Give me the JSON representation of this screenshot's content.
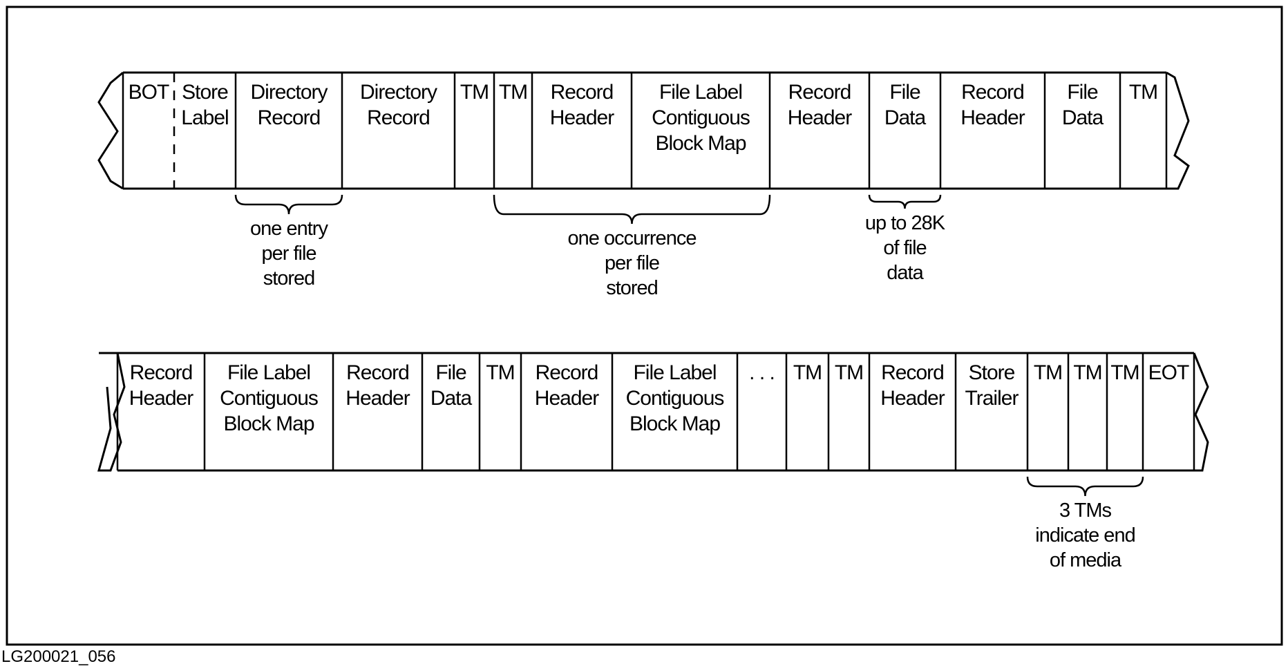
{
  "figure_id": "LG200021_056",
  "row1": {
    "cells": [
      [
        "BOT"
      ],
      [
        "Store",
        "Label"
      ],
      [
        "Directory",
        "Record"
      ],
      [
        "Directory",
        "Record"
      ],
      [
        "TM"
      ],
      [
        "TM"
      ],
      [
        "Record",
        "Header"
      ],
      [
        "File Label",
        "Contiguous",
        "Block Map"
      ],
      [
        "Record",
        "Header"
      ],
      [
        "File",
        "Data"
      ],
      [
        "Record",
        "Header"
      ],
      [
        "File",
        "Data"
      ],
      [
        "TM"
      ]
    ],
    "notes": [
      {
        "lines": [
          "one entry",
          "per file",
          "stored"
        ]
      },
      {
        "lines": [
          "one occurrence",
          "per file",
          "stored"
        ]
      },
      {
        "lines": [
          "up to 28K",
          "of file",
          "data"
        ]
      }
    ]
  },
  "row2": {
    "cells": [
      [
        "Record",
        "Header"
      ],
      [
        "File Label",
        "Contiguous",
        "Block Map"
      ],
      [
        "Record",
        "Header"
      ],
      [
        "File",
        "Data"
      ],
      [
        "TM"
      ],
      [
        "Record",
        "Header"
      ],
      [
        "File Label",
        "Contiguous",
        "Block Map"
      ],
      [
        ". . ."
      ],
      [
        "TM"
      ],
      [
        "TM"
      ],
      [
        "Record",
        "Header"
      ],
      [
        "Store",
        "Trailer"
      ],
      [
        "TM"
      ],
      [
        "TM"
      ],
      [
        "TM"
      ],
      [
        "EOT"
      ]
    ],
    "notes": [
      {
        "lines": [
          "3 TMs",
          "indicate end",
          "of media"
        ]
      }
    ]
  }
}
